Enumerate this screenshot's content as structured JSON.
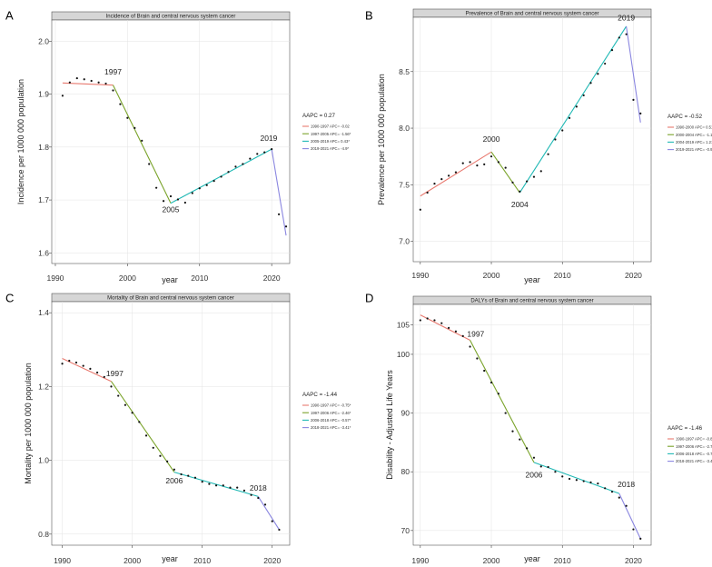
{
  "chart_data": [
    {
      "panel_label": "A",
      "type": "line",
      "title": "Incidence of Brain and central nervous system cancer",
      "xlabel": "year",
      "ylabel": "Incidence per 1000 000 population",
      "xlim": [
        1989.5,
        2022.5
      ],
      "ylim": [
        1.58,
        2.04
      ],
      "xticks": [
        1990,
        2000,
        2010,
        2020
      ],
      "yticks": [
        1.6,
        1.7,
        1.8,
        1.9,
        2.0
      ],
      "ytick_decimals": 1,
      "aapc_text": "AAPC = 0.27",
      "points": {
        "x": [
          1991,
          1992,
          1993,
          1994,
          1995,
          1996,
          1997,
          1998,
          1999,
          2000,
          2001,
          2002,
          2003,
          2004,
          2005,
          2006,
          2007,
          2008,
          2009,
          2010,
          2011,
          2012,
          2013,
          2014,
          2015,
          2016,
          2017,
          2018,
          2019,
          2020,
          2021,
          2022
        ],
        "y": [
          1.897,
          1.922,
          1.93,
          1.928,
          1.925,
          1.922,
          1.92,
          1.907,
          1.881,
          1.855,
          1.836,
          1.812,
          1.768,
          1.723,
          1.698,
          1.707,
          1.701,
          1.695,
          1.713,
          1.722,
          1.728,
          1.736,
          1.744,
          1.753,
          1.763,
          1.768,
          1.778,
          1.787,
          1.79,
          1.796,
          1.673,
          1.65
        ]
      },
      "series": [
        {
          "name": "1990-1997 APC= -0.02",
          "color": "#e8796f",
          "x": [
            1991,
            1998
          ],
          "y": [
            1.921,
            1.917
          ]
        },
        {
          "name": "1997-2005 APC= -1.56*",
          "color": "#7aa32a",
          "x": [
            1998,
            2006
          ],
          "y": [
            1.917,
            1.694
          ]
        },
        {
          "name": "2005-2019 APC= 0.43*",
          "color": "#1fb8b4",
          "x": [
            2006,
            2020
          ],
          "y": [
            1.694,
            1.796
          ]
        },
        {
          "name": "2019-2021 APC= -4.9*",
          "color": "#8a86e0",
          "x": [
            2020,
            2022
          ],
          "y": [
            1.796,
            1.633
          ]
        }
      ],
      "annotations": [
        {
          "text": "1997",
          "x": 1998,
          "y": 1.937
        },
        {
          "text": "2005",
          "x": 2006,
          "y": 1.677
        },
        {
          "text": "2019",
          "x": 2019.6,
          "y": 1.812
        }
      ]
    },
    {
      "panel_label": "B",
      "type": "line",
      "title": "Prevalence of Brain and central nervous system cancer",
      "xlabel": "year",
      "ylabel": "Prevalence per 1000 000 population",
      "xlim": [
        1989,
        2022.5
      ],
      "ylim": [
        6.82,
        8.98
      ],
      "xticks": [
        1990,
        2000,
        2010,
        2020
      ],
      "yticks": [
        7.0,
        7.5,
        8.0,
        8.5
      ],
      "ytick_decimals": 1,
      "aapc_text": "AAPC = -0.52",
      "points": {
        "x": [
          1990,
          1991,
          1992,
          1993,
          1994,
          1995,
          1996,
          1997,
          1998,
          1999,
          2000,
          2001,
          2002,
          2003,
          2004,
          2005,
          2006,
          2007,
          2008,
          2009,
          2010,
          2011,
          2012,
          2013,
          2014,
          2015,
          2016,
          2017,
          2018,
          2019,
          2020,
          2021
        ],
        "y": [
          7.28,
          7.43,
          7.51,
          7.55,
          7.58,
          7.61,
          7.69,
          7.7,
          7.67,
          7.68,
          7.75,
          7.7,
          7.65,
          7.52,
          7.44,
          7.53,
          7.57,
          7.62,
          7.77,
          7.9,
          7.98,
          8.09,
          8.19,
          8.29,
          8.4,
          8.48,
          8.57,
          8.69,
          8.8,
          8.83,
          8.25,
          8.13
        ]
      },
      "series": [
        {
          "name": "1990-2000 APC= 0.51*",
          "color": "#e8796f",
          "x": [
            1990,
            2000
          ],
          "y": [
            7.4,
            7.79
          ]
        },
        {
          "name": "2000-2004 APC= -1.17*",
          "color": "#7aa32a",
          "x": [
            2000,
            2004
          ],
          "y": [
            7.79,
            7.43
          ]
        },
        {
          "name": "2004-2019 APC= 1.21*",
          "color": "#1fb8b4",
          "x": [
            2004,
            2019
          ],
          "y": [
            7.43,
            8.9
          ]
        },
        {
          "name": "2019-2021 APC= -0.96*",
          "color": "#8a86e0",
          "x": [
            2019,
            2021
          ],
          "y": [
            8.9,
            8.05
          ]
        }
      ],
      "annotations": [
        {
          "text": "2000",
          "x": 2000,
          "y": 7.88
        },
        {
          "text": "2004",
          "x": 2004,
          "y": 7.3
        },
        {
          "text": "2019",
          "x": 2019,
          "y": 8.95
        }
      ]
    },
    {
      "panel_label": "C",
      "type": "line",
      "title": "Mortality of Brain and central nervous system cancer",
      "xlabel": "year",
      "ylabel": "Mortality per 1000 000 population",
      "xlim": [
        1988.5,
        2022.5
      ],
      "ylim": [
        0.77,
        1.43
      ],
      "xticks": [
        1990,
        2000,
        2010,
        2020
      ],
      "yticks": [
        0.8,
        1.0,
        1.2,
        1.4
      ],
      "ytick_decimals": 1,
      "aapc_text": "AAPC = -1.44",
      "points": {
        "x": [
          1990,
          1991,
          1992,
          1993,
          1994,
          1995,
          1996,
          1997,
          1998,
          1999,
          2000,
          2001,
          2002,
          2003,
          2004,
          2005,
          2006,
          2007,
          2008,
          2009,
          2010,
          2011,
          2012,
          2013,
          2014,
          2015,
          2016,
          2017,
          2018,
          2019,
          2020,
          2021
        ],
        "y": [
          1.262,
          1.27,
          1.265,
          1.256,
          1.248,
          1.238,
          1.226,
          1.2,
          1.175,
          1.15,
          1.129,
          1.104,
          1.067,
          1.034,
          1.012,
          0.997,
          0.975,
          0.962,
          0.958,
          0.953,
          0.942,
          0.936,
          0.932,
          0.932,
          0.926,
          0.926,
          0.918,
          0.906,
          0.898,
          0.88,
          0.835,
          0.812
        ]
      },
      "series": [
        {
          "name": "1990-1997 APC= -0.75*",
          "color": "#e8796f",
          "x": [
            1990,
            1997
          ],
          "y": [
            1.276,
            1.214
          ]
        },
        {
          "name": "1997-2006 APC= -2.46*",
          "color": "#7aa32a",
          "x": [
            1997,
            2006
          ],
          "y": [
            1.214,
            0.968
          ]
        },
        {
          "name": "2006-2018 APC= -0.57*",
          "color": "#1fb8b4",
          "x": [
            2006,
            2018
          ],
          "y": [
            0.968,
            0.902
          ]
        },
        {
          "name": "2018-2021 APC= -3.41*",
          "color": "#8a86e0",
          "x": [
            2018,
            2021
          ],
          "y": [
            0.902,
            0.812
          ]
        }
      ],
      "annotations": [
        {
          "text": "1997",
          "x": 1997.5,
          "y": 1.228
        },
        {
          "text": "2006",
          "x": 2006,
          "y": 0.937
        },
        {
          "text": "2018",
          "x": 2018,
          "y": 0.918
        }
      ]
    },
    {
      "panel_label": "D",
      "type": "line",
      "title": "DALYs of Brain and central nervous system cancer",
      "xlabel": "year",
      "ylabel": "Disability - Adjusted Life Years",
      "xlim": [
        1989,
        2022.5
      ],
      "ylim": [
        67.5,
        108.5
      ],
      "xticks": [
        1990,
        2000,
        2010,
        2020
      ],
      "yticks": [
        70,
        80,
        90,
        100,
        105
      ],
      "ytick_decimals": 0,
      "aapc_text": "AAPC = -1.46",
      "points": {
        "x": [
          1990,
          1991,
          1992,
          1993,
          1994,
          1995,
          1996,
          1997,
          1998,
          1999,
          2000,
          2001,
          2002,
          2003,
          2004,
          2005,
          2006,
          2007,
          2008,
          2009,
          2010,
          2011,
          2012,
          2013,
          2014,
          2015,
          2016,
          2017,
          2018,
          2019,
          2020,
          2021
        ],
        "y": [
          105.8,
          106.1,
          105.8,
          105.3,
          104.5,
          103.9,
          103.1,
          101.3,
          99.3,
          97.2,
          95.2,
          93.3,
          90.0,
          86.9,
          85.5,
          84.0,
          82.4,
          80.9,
          80.8,
          80.0,
          79.2,
          78.8,
          78.6,
          78.4,
          78.2,
          78.0,
          77.2,
          76.6,
          75.6,
          74.2,
          70.2,
          68.6
        ]
      },
      "series": [
        {
          "name": "1990-1997 APC= -0.80*",
          "color": "#e8796f",
          "x": [
            1990,
            1997
          ],
          "y": [
            106.7,
            102.4
          ]
        },
        {
          "name": "1997-2006 APC= -2.76*",
          "color": "#7aa32a",
          "x": [
            1997,
            2006
          ],
          "y": [
            102.4,
            81.6
          ]
        },
        {
          "name": "2006-2018 APC= -0.70*",
          "color": "#1fb8b4",
          "x": [
            2006,
            2018
          ],
          "y": [
            81.6,
            76.3
          ]
        },
        {
          "name": "2018-2021 APC= -3.46*",
          "color": "#8a86e0",
          "x": [
            2018,
            2021
          ],
          "y": [
            76.3,
            68.6
          ]
        }
      ],
      "annotations": [
        {
          "text": "1997",
          "x": 1997.8,
          "y": 103.0
        },
        {
          "text": "2006",
          "x": 2006,
          "y": 79.0
        },
        {
          "text": "2018",
          "x": 2019,
          "y": 77.4
        }
      ]
    }
  ]
}
